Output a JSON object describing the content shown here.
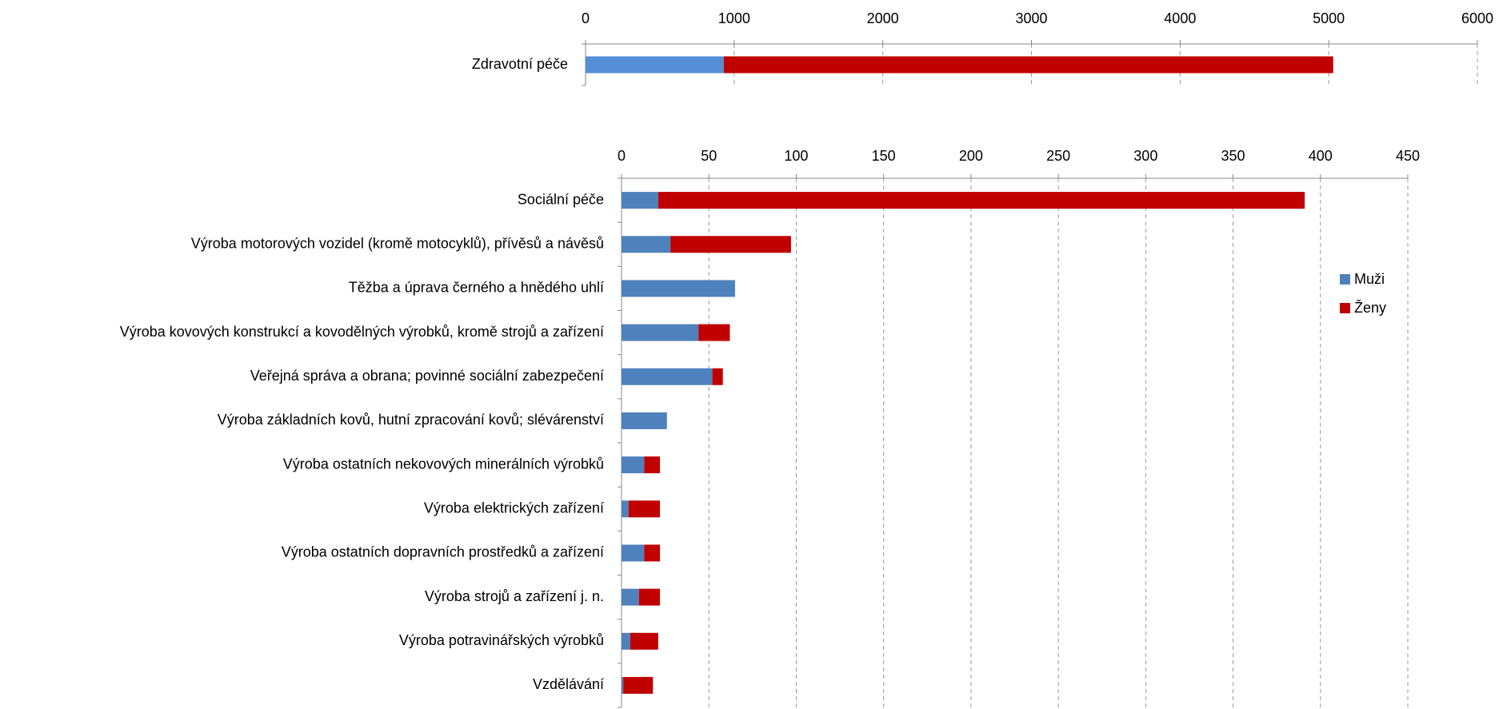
{
  "chart_data": [
    {
      "type": "bar",
      "orientation": "horizontal",
      "stacked": true,
      "categories": [
        "Zdravotní péče"
      ],
      "series": [
        {
          "color": "#558ed5",
          "values": [
            930
          ]
        },
        {
          "color": "#c00000",
          "values": [
            4100
          ]
        }
      ],
      "xlim": [
        0,
        6000
      ],
      "xticks": [
        0,
        1000,
        2000,
        3000,
        4000,
        5000,
        6000
      ],
      "grid": true
    },
    {
      "type": "bar",
      "orientation": "horizontal",
      "stacked": true,
      "categories": [
        "Sociální péče",
        "Výroba motorových vozidel (kromě motocyklů), přívěsů a návěsů",
        "Těžba a úprava černého a hnědého uhlí",
        "Výroba kovových konstrukcí a kovodělných výrobků, kromě strojů a zařízení",
        "Veřejná správa a obrana; povinné sociální zabezpečení",
        "Výroba základních kovů, hutní zpracování kovů; slévárenství",
        "Výroba ostatních nekovových minerálních výrobků",
        "Výroba elektrických zařízení",
        "Výroba ostatních dopravních prostředků a zařízení",
        "Výroba strojů a zařízení j. n.",
        "Výroba potravinářských výrobků",
        "Vzdělávání"
      ],
      "series": [
        {
          "name": "Muži",
          "color": "#4f81bd",
          "values": [
            21,
            28,
            65,
            44,
            52,
            26,
            13,
            4,
            13,
            10,
            5,
            1
          ]
        },
        {
          "name": "Ženy",
          "color": "#c00000",
          "values": [
            370,
            69,
            0,
            18,
            6,
            0,
            9,
            18,
            9,
            12,
            16,
            17
          ]
        }
      ],
      "xlim": [
        0,
        450
      ],
      "xticks": [
        0,
        50,
        100,
        150,
        200,
        250,
        300,
        350,
        400,
        450
      ],
      "grid": true,
      "legend": "right"
    }
  ]
}
